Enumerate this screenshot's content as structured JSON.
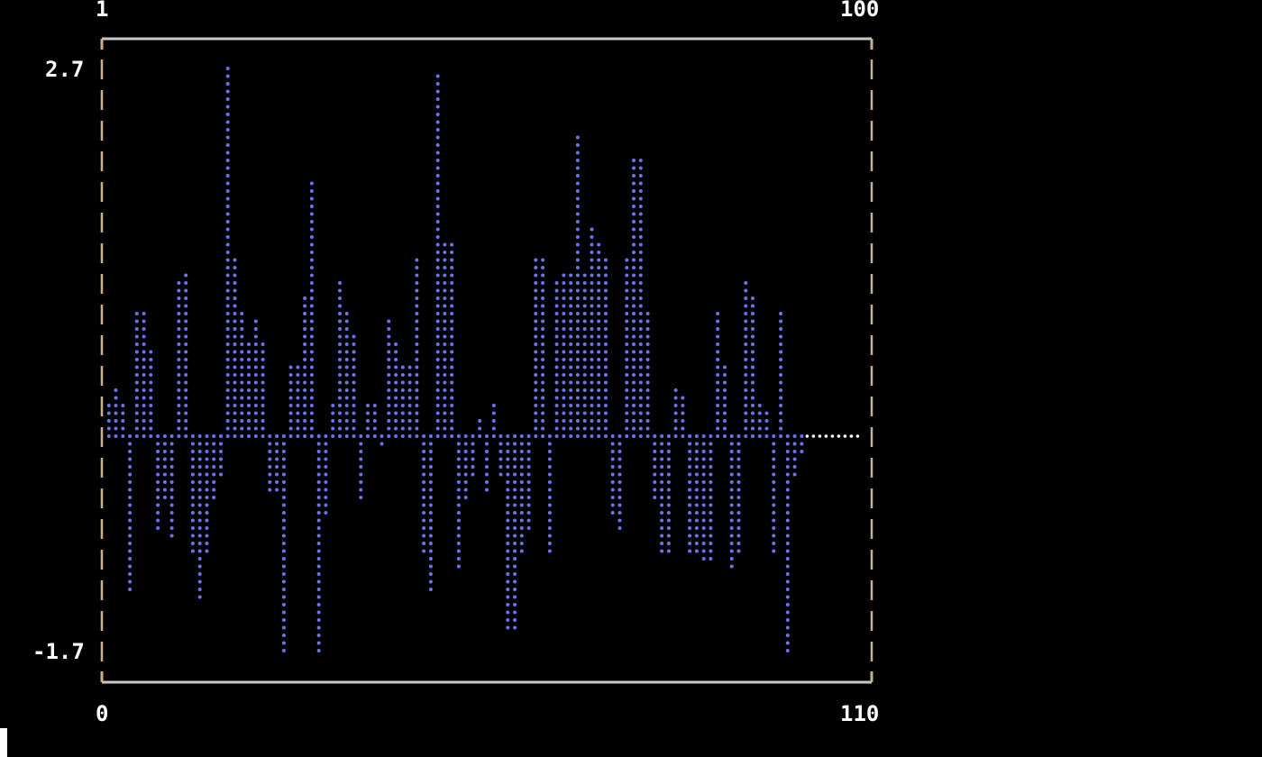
{
  "chart_data": {
    "type": "bar",
    "title": "",
    "xlabel": "",
    "ylabel": "",
    "xlim": [
      0,
      110
    ],
    "ylim": [
      -1.7,
      2.7
    ],
    "top_tick_labels": [
      "1",
      "100"
    ],
    "bottom_tick_labels": [
      "0",
      "110"
    ],
    "y_tick_labels": [
      "2.7",
      "-1.7"
    ],
    "grid": false,
    "x": [
      1,
      2,
      3,
      4,
      5,
      6,
      7,
      8,
      9,
      10,
      11,
      12,
      13,
      14,
      15,
      16,
      17,
      18,
      19,
      20,
      21,
      22,
      23,
      24,
      25,
      26,
      27,
      28,
      29,
      30,
      31,
      32,
      33,
      34,
      35,
      36,
      37,
      38,
      39,
      40,
      41,
      42,
      43,
      44,
      45,
      46,
      47,
      48,
      49,
      50,
      51,
      52,
      53,
      54,
      55,
      56,
      57,
      58,
      59,
      60,
      61,
      62,
      63,
      64,
      65,
      66,
      67,
      68,
      69,
      70,
      71,
      72,
      73,
      74,
      75,
      76,
      77,
      78,
      79,
      80,
      81,
      82,
      83,
      84,
      85,
      86,
      87,
      88,
      89,
      90,
      91,
      92,
      93,
      94,
      95,
      96,
      97,
      98,
      99,
      100
    ],
    "values": [
      0.2,
      0.35,
      0.25,
      -1.2,
      0.9,
      0.9,
      0.6,
      -0.7,
      -0.5,
      -0.8,
      1.1,
      1.2,
      -0.9,
      -1.25,
      -0.9,
      -0.5,
      -0.3,
      2.7,
      1.3,
      0.9,
      0.7,
      0.85,
      0.7,
      -0.4,
      -0.4,
      -1.7,
      0.5,
      0.5,
      1.0,
      1.85,
      -1.7,
      -0.6,
      0.2,
      1.1,
      0.9,
      0.75,
      -0.5,
      0.2,
      0.25,
      -0.05,
      0.85,
      0.65,
      0.5,
      0.5,
      1.3,
      -0.9,
      -1.2,
      2.65,
      1.4,
      1.4,
      -1.0,
      -0.5,
      -0.3,
      0.1,
      -0.4,
      0.2,
      -0.3,
      -1.5,
      -1.5,
      -0.9,
      -0.7,
      1.3,
      1.3,
      -0.9,
      1.1,
      1.2,
      1.2,
      2.2,
      1.2,
      1.5,
      1.4,
      1.3,
      -0.6,
      -0.7,
      1.3,
      2.05,
      2.05,
      0.9,
      -0.5,
      -0.9,
      -0.9,
      0.35,
      0.3,
      -0.9,
      -0.9,
      -0.95,
      -0.95,
      0.9,
      0.5,
      -1.0,
      -0.9,
      1.1,
      1.0,
      0.2,
      0.15,
      -0.9,
      0.9,
      -1.7,
      -0.3,
      -0.1
    ],
    "zero_line": {
      "x": [
        100,
        110
      ],
      "y": 0,
      "color": "#ffffff"
    },
    "colors": {
      "bars": "#6b73f0",
      "frame_top_bottom": "#c8c8c8",
      "frame_sides": "#c8b090",
      "text": "#ffffff"
    }
  }
}
